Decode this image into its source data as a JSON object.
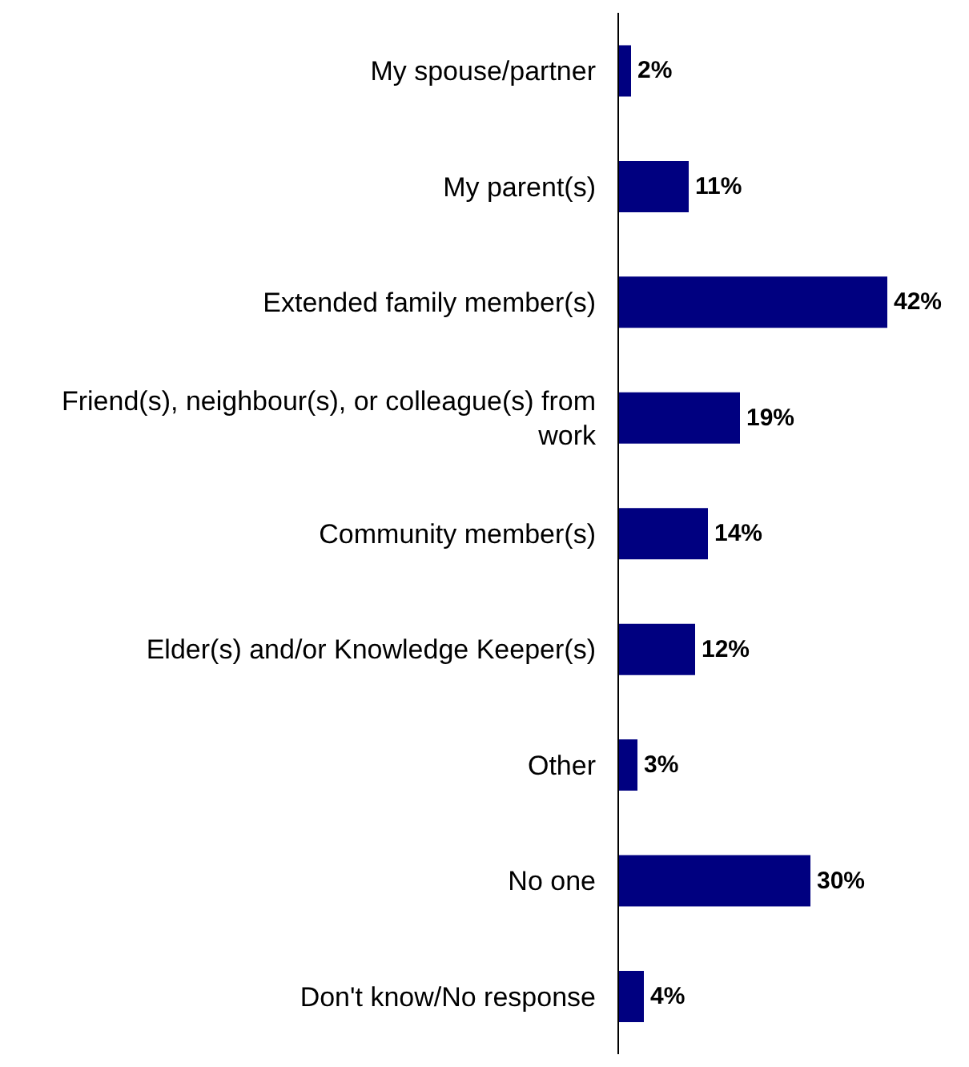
{
  "chart_data": {
    "type": "bar",
    "orientation": "horizontal",
    "categories": [
      "My spouse/partner",
      "My parent(s)",
      "Extended family member(s)",
      "Friend(s), neighbour(s), or colleague(s) from work",
      "Community member(s)",
      "Elder(s) and/or Knowledge Keeper(s)",
      "Other",
      "No one",
      "Don't know/No response"
    ],
    "values": [
      2,
      11,
      42,
      19,
      14,
      12,
      3,
      30,
      4
    ],
    "value_labels": [
      "2%",
      "11%",
      "42%",
      "19%",
      "14%",
      "12%",
      "3%",
      "30%",
      "4%"
    ],
    "color": "#000080"
  }
}
